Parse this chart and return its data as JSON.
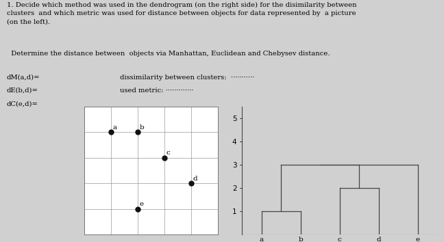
{
  "bg_color": "#d0d0d0",
  "title_text": "1. Decide which method was used in the dendrogram (on the right side) for the disimilarity between\nclusters  and which metric was used for distance between objects for data represented by  a picture\n(on the left).",
  "subtitle_text": "  Determine the distance between  objects via Manhattan, Euclidean and Chebysev distance.",
  "label_line1": "dM(a,d)=",
  "label_line2": "dE(b,d)=",
  "label_line3": "dC(e,d)=",
  "dissim_text": "dissimilarity between clusters:  ···········",
  "metric_text": "used metric: ·············",
  "scatter_points": {
    "a": [
      1,
      4
    ],
    "b": [
      2,
      4
    ],
    "c": [
      3,
      3
    ],
    "d": [
      4,
      2
    ],
    "e": [
      2,
      1
    ]
  },
  "scatter_xlim": [
    0,
    5
  ],
  "scatter_ylim": [
    0,
    5
  ],
  "dendro_labels": [
    "a",
    "b",
    "c",
    "d",
    "e"
  ],
  "dendro_yticks": [
    1,
    2,
    3,
    4,
    5
  ],
  "dendro_ylim": [
    0,
    5.5
  ],
  "line_color": "#444444",
  "point_color": "#111111",
  "point_size": 5,
  "text_fontsize": 7.2,
  "scatter_label_fontsize": 7.5,
  "dendro_tick_fontsize": 7.5
}
